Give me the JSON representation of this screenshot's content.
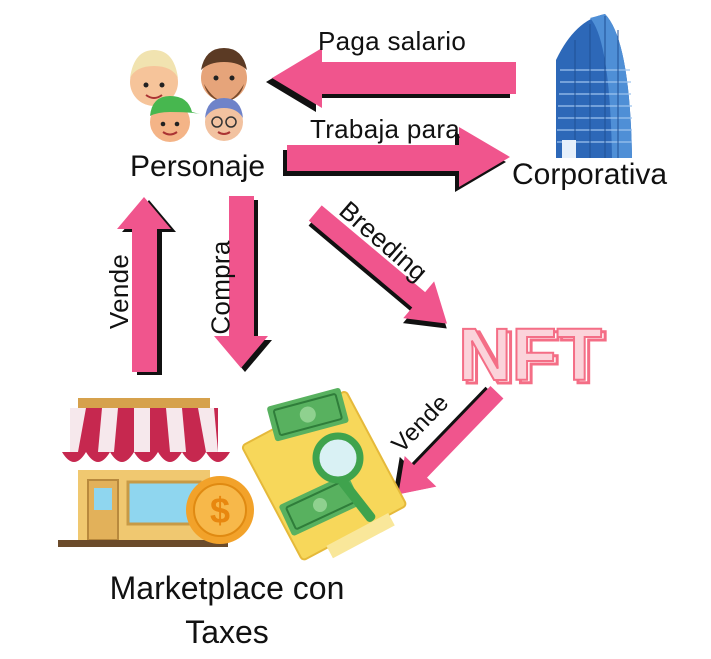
{
  "nodes": {
    "personaje": {
      "label": "Personaje",
      "icon": "people-icon"
    },
    "corporativa": {
      "label": "Corporativa",
      "icon": "skyscraper-icon"
    },
    "nft": {
      "label": "NFT",
      "icon": "nft-logo"
    },
    "marketplace": {
      "line1": "Marketplace con",
      "line2": "Taxes",
      "icon": "storefront-icon"
    }
  },
  "edges": {
    "paga_salario": "Paga salario",
    "trabaja_para": "Trabaja para",
    "breeding": "Breeding",
    "compra": "Compra",
    "vende_left": "Vende",
    "vende_nft": "Vende"
  },
  "colors": {
    "arrow_fill": "#f0558d",
    "arrow_outline": "#111111",
    "building": "#2d68b8",
    "nft_pink": "#f46e86",
    "awning_red": "#c6284f",
    "coin": "#f2a22a",
    "money_green": "#3fa34d"
  }
}
